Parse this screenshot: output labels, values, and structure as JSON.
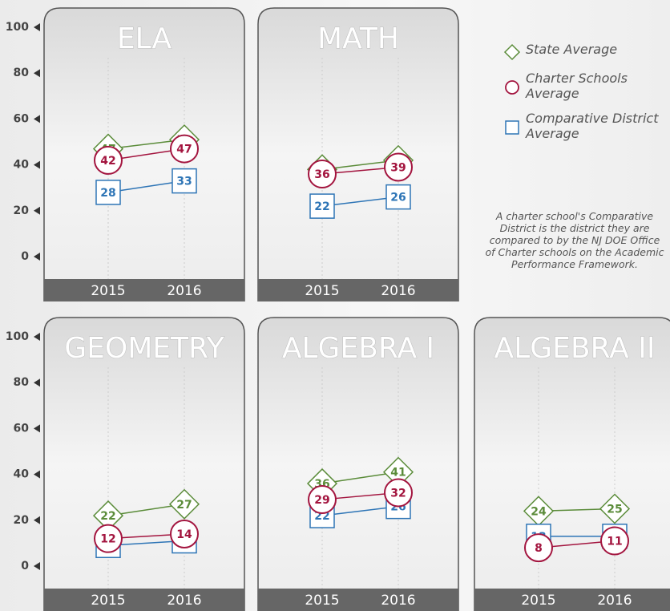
{
  "chart_data": [
    {
      "type": "line",
      "title": "ELA",
      "categories": [
        "2015",
        "2016"
      ],
      "ylim": [
        0,
        100
      ],
      "yticks": [
        0,
        20,
        40,
        60,
        80,
        100
      ],
      "series": [
        {
          "name": "State Average",
          "color": "#5b8c3a",
          "values": [
            47,
            51
          ]
        },
        {
          "name": "Charter Schools Average",
          "color": "#a3153f",
          "values": [
            42,
            47
          ]
        },
        {
          "name": "Comparative District Average",
          "color": "#2e75b6",
          "values": [
            28,
            33
          ]
        }
      ]
    },
    {
      "type": "line",
      "title": "MATH",
      "categories": [
        "2015",
        "2016"
      ],
      "ylim": [
        0,
        100
      ],
      "series": [
        {
          "name": "State Average",
          "color": "#5b8c3a",
          "values": [
            38,
            42
          ]
        },
        {
          "name": "Charter Schools Average",
          "color": "#a3153f",
          "values": [
            36,
            39
          ]
        },
        {
          "name": "Comparative District Average",
          "color": "#2e75b6",
          "values": [
            22,
            26
          ]
        }
      ]
    },
    {
      "type": "line",
      "title": "GEOMETRY",
      "categories": [
        "2015",
        "2016"
      ],
      "ylim": [
        0,
        100
      ],
      "yticks": [
        0,
        20,
        40,
        60,
        80,
        100
      ],
      "series": [
        {
          "name": "State Average",
          "color": "#5b8c3a",
          "values": [
            22,
            27
          ]
        },
        {
          "name": "Charter Schools Average",
          "color": "#a3153f",
          "values": [
            12,
            14
          ]
        },
        {
          "name": "Comparative District Average",
          "color": "#2e75b6",
          "values": [
            9,
            11
          ]
        }
      ]
    },
    {
      "type": "line",
      "title": "ALGEBRA I",
      "categories": [
        "2015",
        "2016"
      ],
      "ylim": [
        0,
        100
      ],
      "series": [
        {
          "name": "State Average",
          "color": "#5b8c3a",
          "values": [
            36,
            41
          ]
        },
        {
          "name": "Charter Schools Average",
          "color": "#a3153f",
          "values": [
            29,
            32
          ]
        },
        {
          "name": "Comparative District Average",
          "color": "#2e75b6",
          "values": [
            22,
            26
          ]
        }
      ]
    },
    {
      "type": "line",
      "title": "ALGEBRA II",
      "categories": [
        "2015",
        "2016"
      ],
      "ylim": [
        0,
        100
      ],
      "series": [
        {
          "name": "State Average",
          "color": "#5b8c3a",
          "values": [
            24,
            25
          ]
        },
        {
          "name": "Charter Schools Average",
          "color": "#a3153f",
          "values": [
            8,
            11
          ]
        },
        {
          "name": "Comparative District Average",
          "color": "#2e75b6",
          "values": [
            13,
            13
          ]
        }
      ]
    }
  ],
  "note": "A charter school's Comparative District is the district they are compared to by the NJ DOE Office of Charter schools on the Academic Performance Framework."
}
